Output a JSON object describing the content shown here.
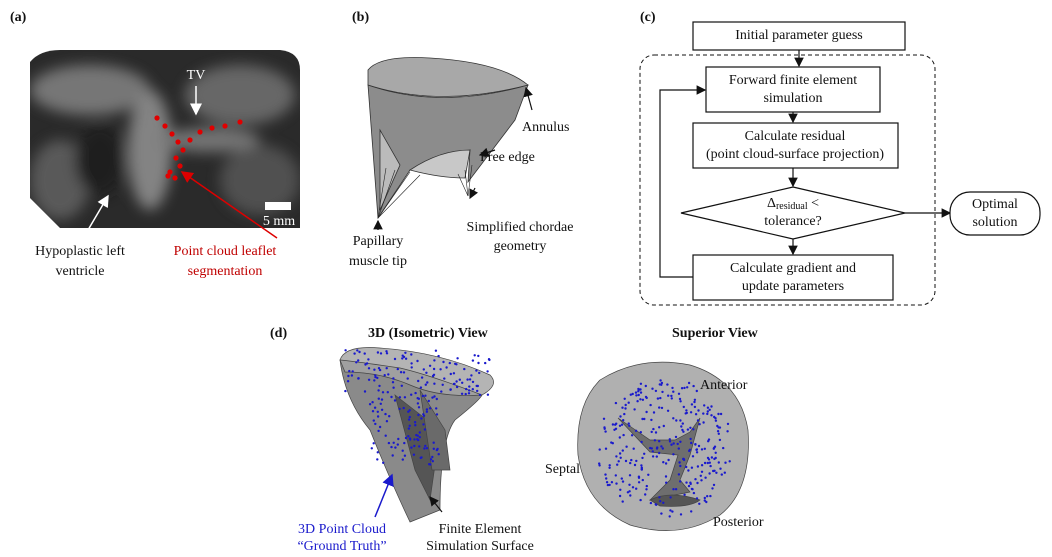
{
  "panels": {
    "a": {
      "label": "(a)",
      "tv": "TV",
      "scale": "5 mm",
      "lv": [
        "Hypoplastic left",
        "ventricle"
      ],
      "pc": [
        "Point cloud leaflet",
        "segmentation"
      ]
    },
    "b": {
      "label": "(b)",
      "annulus": "Annulus",
      "free_edge": "Free edge",
      "chordae": [
        "Simplified chordae",
        "geometry"
      ],
      "papillary": [
        "Papillary",
        "muscle tip"
      ]
    },
    "c": {
      "label": "(c)",
      "initial": "Initial parameter guess",
      "forward": [
        "Forward finite element",
        "simulation"
      ],
      "residual": [
        "Calculate residual",
        "(point cloud-surface projection)"
      ],
      "check": {
        "delta": "Δ",
        "sub": "residual",
        "lt": " <",
        "line2": "tolerance?"
      },
      "gradient": [
        "Calculate gradient and",
        "update parameters"
      ],
      "optimal": [
        "Optimal",
        "solution"
      ]
    },
    "d": {
      "label": "(d)",
      "iso_title": "3D (Isometric) View",
      "sup_title": "Superior View",
      "anterior": "Anterior",
      "septal": "Septal",
      "posterior": "Posterior",
      "cloud": [
        "3D Point Cloud",
        "“Ground Truth”"
      ],
      "surface": [
        "Finite Element",
        "Simulation Surface"
      ]
    }
  }
}
